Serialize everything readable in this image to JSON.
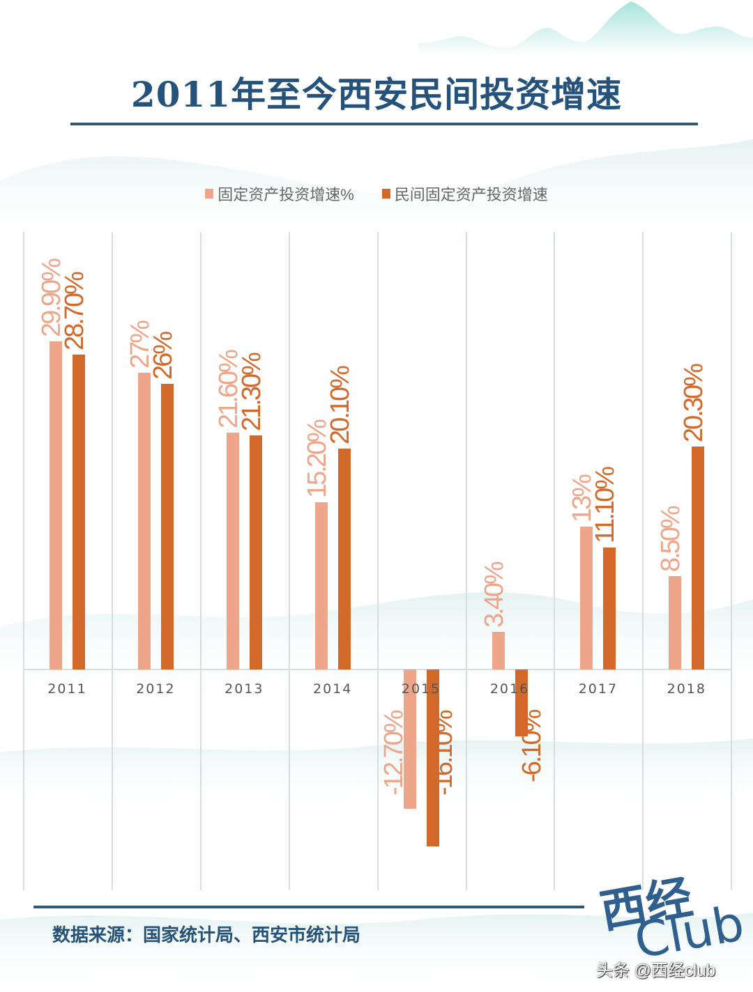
{
  "header": {
    "title": "2011年至今西安民间投资增速"
  },
  "legend": {
    "items": [
      {
        "label": "固定资产投资增速%",
        "color": "#eea68a"
      },
      {
        "label": "民间固定资产投资增速",
        "color": "#d2692a"
      }
    ]
  },
  "footer": {
    "source": "数据来源：国家统计局、西安市统计局",
    "logo_cn": "西经",
    "logo_en": "Club",
    "watermark": "头条 @西经club"
  },
  "colors": {
    "title": "#24527a",
    "series_light": "#eea68a",
    "series_dark": "#d2692a",
    "grid": "#d8dde2",
    "axis_label": "#555555"
  },
  "chart_data": {
    "type": "bar",
    "title": "2011年至今西安民间投资增速",
    "xlabel": "",
    "ylabel": "",
    "categories": [
      "2011",
      "2012",
      "2013",
      "2014",
      "2015",
      "2016",
      "2017",
      "2018"
    ],
    "series": [
      {
        "name": "固定资产投资增速%",
        "values": [
          29.9,
          27,
          21.6,
          15.2,
          -12.7,
          3.4,
          13,
          8.5
        ],
        "labels": [
          "29.90%",
          "27%",
          "21.60%",
          "15.20%",
          "-12.70%",
          "3.40%",
          "13%",
          "8.50%"
        ]
      },
      {
        "name": "民间固定资产投资增速",
        "values": [
          28.7,
          26,
          21.3,
          20.1,
          -16.1,
          -6.1,
          11.1,
          20.3
        ],
        "labels": [
          "28.70%",
          "26%",
          "21.30%",
          "20.10%",
          "-16.10%",
          "-6.10%",
          "11.10%",
          "20.30%"
        ]
      }
    ],
    "ylim": [
      -20,
      35
    ],
    "grid": "vertical category separators",
    "legend_position": "top",
    "data_labels": "rotated 90°, above positive bars / below negative bars"
  }
}
